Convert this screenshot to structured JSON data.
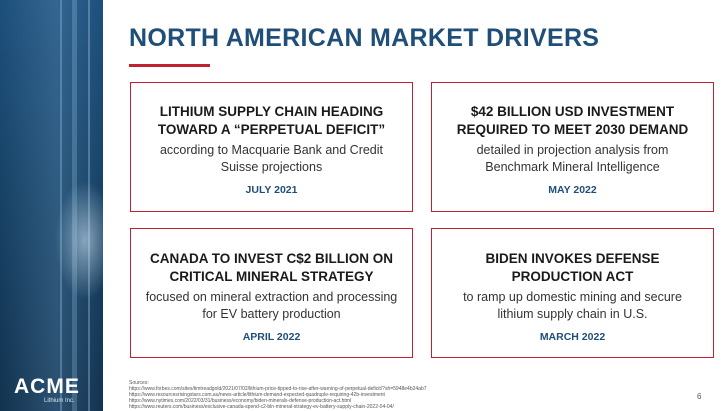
{
  "slide": {
    "title": "NORTH AMERICAN MARKET DRIVERS",
    "page_number": "6"
  },
  "brand": {
    "logo_text": "ACME",
    "logo_sub": "Lithium Inc.",
    "accent_color": "#c0202f",
    "title_color": "#1f4e79"
  },
  "cards": [
    {
      "headline": "LITHIUM SUPPLY CHAIN HEADING TOWARD A “PERPETUAL DEFICIT”",
      "detail": "according to Macquarie Bank and Credit Suisse projections",
      "date": "JULY 2021"
    },
    {
      "headline": "$42 BILLION USD INVESTMENT REQUIRED TO MEET 2030 DEMAND",
      "detail": "detailed in projection analysis from Benchmark Mineral Intelligence",
      "date": "MAY 2022"
    },
    {
      "headline": "CANADA TO INVEST C$2 BILLION ON CRITICAL MINERAL STRATEGY",
      "detail": "focused on mineral extraction and processing for EV battery production",
      "date": "APRIL 2022"
    },
    {
      "headline": "BIDEN INVOKES DEFENSE PRODUCTION ACT",
      "detail": "to ramp up domestic mining and secure lithium supply chain in U.S.",
      "date": "MARCH 2022"
    }
  ],
  "sources": {
    "label": "Sources:",
    "lines": [
      "https://www.forbes.com/sites/timtreadgold/2021/07/02/lithium-price-tipped-to-rise-after-warning-of-perpetual-deficit/?sh=5948e4b24ab7",
      "https://www.resourcesrisingstars.com.au/news-article/lithium-demand-expected-quadruple-requiring-42b-investment",
      "https://www.nytimes.com/2022/03/31/business/economy/biden-minerals-defense-production-act.html",
      "https://www.reuters.com/business/exclusive-canada-spend-c2-bln-mineral-strategy-ev-battery-supply-chain-2022-04-04/"
    ]
  }
}
